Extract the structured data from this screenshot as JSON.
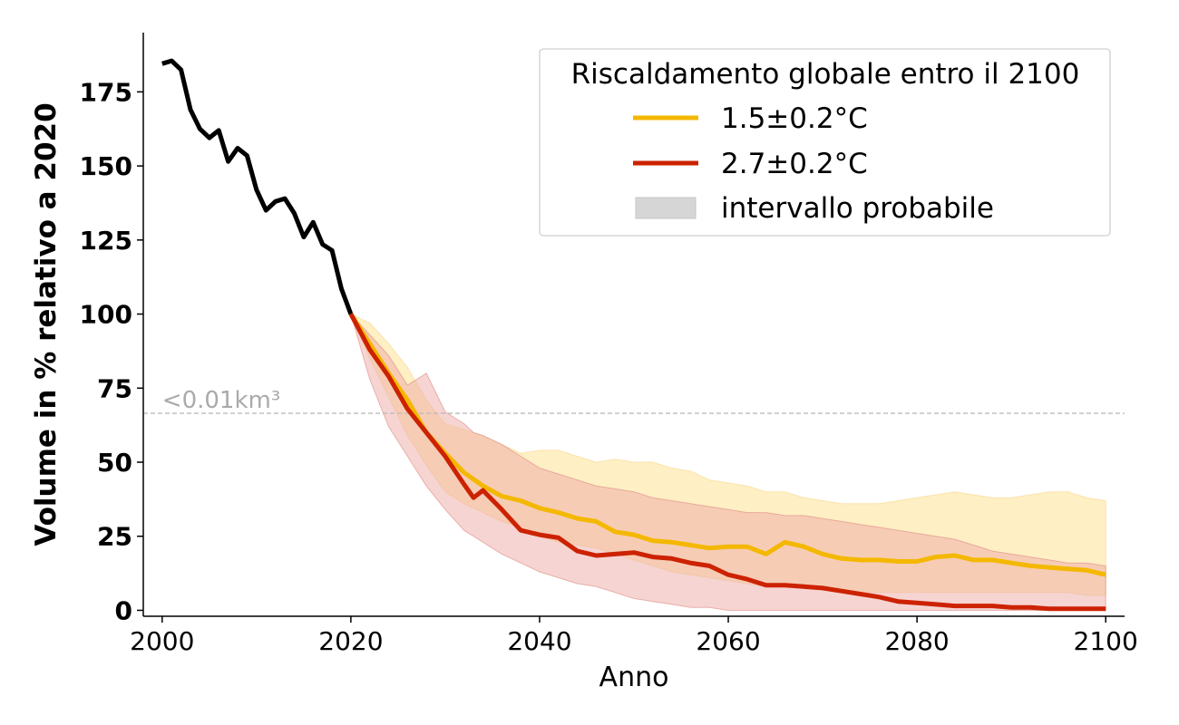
{
  "chart_data": {
    "type": "line",
    "xlabel": "Anno",
    "ylabel": "Volume in % relativo a 2020",
    "xlim": [
      1998,
      2102
    ],
    "ylim": [
      -2,
      195
    ],
    "xticks": [
      2000,
      2020,
      2040,
      2060,
      2080,
      2100
    ],
    "yticks": [
      0,
      25,
      50,
      75,
      100,
      125,
      150,
      175
    ],
    "grid": false,
    "legend": {
      "title": "Riscaldamento globale entro il 2100",
      "placement": "top-right",
      "range_label": "intervallo probabile"
    },
    "annotation": {
      "text": "<0.01km³",
      "y": 66.5
    },
    "colors": {
      "historical": "#000000",
      "low": "#f4b800",
      "high": "#cc2200",
      "low_band": "#ffe9b0",
      "high_band": "#eeaaa5"
    },
    "historical": {
      "x": [
        2000,
        2001,
        2002,
        2003,
        2004,
        2005,
        2006,
        2007,
        2008,
        2009,
        2010,
        2011,
        2012,
        2013,
        2014,
        2015,
        2016,
        2017,
        2018,
        2019,
        2020
      ],
      "y": [
        184.5,
        185.5,
        182.5,
        169,
        162.5,
        159.5,
        162,
        151.5,
        156,
        153.5,
        142,
        135,
        138,
        139,
        134,
        126,
        131,
        123.5,
        121.5,
        108.5,
        100
      ]
    },
    "series": [
      {
        "name": "1.5±0.2°C",
        "x": [
          2020,
          2022,
          2024,
          2026,
          2028,
          2030,
          2032,
          2034,
          2036,
          2038,
          2040,
          2042,
          2044,
          2046,
          2048,
          2050,
          2052,
          2054,
          2056,
          2058,
          2060,
          2062,
          2064,
          2066,
          2068,
          2070,
          2072,
          2074,
          2076,
          2078,
          2080,
          2082,
          2084,
          2086,
          2088,
          2090,
          2092,
          2094,
          2096,
          2098,
          2100
        ],
        "y": [
          100,
          90,
          80,
          71,
          60,
          53,
          46.5,
          42,
          38.5,
          37,
          34.5,
          33,
          31,
          30,
          26.5,
          25.5,
          23.5,
          23,
          22,
          21,
          21.5,
          21.5,
          19,
          23,
          21.5,
          19,
          17.5,
          17,
          17,
          16.5,
          16.5,
          18,
          18.5,
          17,
          17,
          16,
          15,
          14.5,
          14,
          13.5,
          12
        ],
        "band_upper": [
          100,
          97,
          90,
          82,
          71,
          63,
          61,
          59,
          56,
          53,
          54,
          54,
          52,
          50,
          51,
          50,
          50,
          48,
          47,
          44,
          43,
          42,
          40,
          40,
          38,
          37,
          36,
          36,
          36,
          37,
          38,
          39,
          40,
          39,
          38,
          38,
          39,
          40,
          40,
          38,
          37
        ],
        "band_lower": [
          100,
          85,
          72,
          59,
          49,
          40,
          36,
          33,
          30,
          28,
          25,
          23,
          22,
          21,
          19,
          17,
          15,
          13,
          12,
          11,
          10,
          9,
          8,
          9,
          8,
          7,
          6,
          6,
          6,
          6,
          6,
          6,
          6,
          6,
          6,
          6,
          6,
          6,
          6,
          5,
          5
        ]
      },
      {
        "name": "2.7±0.2°C",
        "x": [
          2020,
          2022,
          2024,
          2026,
          2028,
          2030,
          2032,
          2033,
          2034,
          2036,
          2038,
          2040,
          2042,
          2044,
          2046,
          2048,
          2050,
          2052,
          2054,
          2056,
          2058,
          2060,
          2062,
          2064,
          2066,
          2068,
          2070,
          2072,
          2074,
          2076,
          2078,
          2080,
          2082,
          2084,
          2086,
          2088,
          2090,
          2092,
          2094,
          2096,
          2098,
          2100
        ],
        "y": [
          100,
          88,
          79,
          68,
          60,
          52,
          42.5,
          38,
          40.5,
          34,
          27,
          25.5,
          24.5,
          20,
          18.5,
          19,
          19.5,
          18,
          17.5,
          16,
          15,
          12,
          10.5,
          8.5,
          8.5,
          8,
          7.5,
          6.5,
          5.5,
          4.5,
          3,
          2.5,
          2,
          1.5,
          1.5,
          1.5,
          1,
          1,
          0.5,
          0.5,
          0.5,
          0.5
        ],
        "band_upper": [
          100,
          93,
          86,
          76,
          80,
          67,
          63,
          60,
          59,
          56,
          52,
          48,
          46,
          44,
          42,
          41,
          40,
          38,
          37,
          36,
          35,
          34,
          33,
          33,
          32,
          32,
          31,
          30,
          29,
          28,
          27,
          26,
          25,
          24,
          22,
          20,
          19,
          18,
          17,
          16,
          16,
          15
        ],
        "band_lower": [
          100,
          78,
          62,
          52,
          42,
          34,
          27,
          25,
          23,
          19,
          16,
          13,
          11,
          9,
          8,
          6,
          4,
          3,
          2,
          1,
          1,
          0,
          0,
          0,
          0,
          0,
          0,
          0,
          0,
          0,
          0,
          0,
          0,
          0,
          0,
          0,
          0,
          0,
          0,
          0,
          0,
          0
        ]
      }
    ]
  }
}
